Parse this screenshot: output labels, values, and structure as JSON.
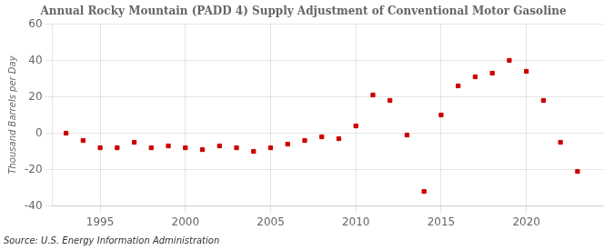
{
  "chart_data": {
    "type": "scatter",
    "title": "Annual Rocky Mountain (PADD 4) Supply Adjustment of Conventional Motor Gasoline",
    "ylabel": "Thousand Barrels per Day",
    "annotations": [
      "Source: U.S. Energy Information Administration"
    ],
    "x": [
      1993,
      1994,
      1995,
      1996,
      1997,
      1998,
      1999,
      2000,
      2001,
      2002,
      2003,
      2004,
      2005,
      2006,
      2007,
      2008,
      2009,
      2010,
      2011,
      2012,
      2013,
      2014,
      2015,
      2016,
      2017,
      2018,
      2019,
      2020,
      2021,
      2022,
      2023
    ],
    "values": [
      0.0,
      -4.0,
      -8.0,
      -8.0,
      -5.0,
      -8.0,
      -7.0,
      -8.0,
      -9.0,
      -7.0,
      -8.0,
      -10.0,
      -8.0,
      -6.0,
      -4.0,
      -2.0,
      -3.0,
      4.0,
      21.0,
      18.0,
      -1.0,
      -32.0,
      10.0,
      26.0,
      31.0,
      33.0,
      40.0,
      34.0,
      18.0,
      -5.0,
      -21.0
    ],
    "color": "#cc0000",
    "marker": "square",
    "xlim": [
      1992.2,
      2024.5
    ],
    "xticks": [
      1995,
      2000,
      2005,
      2010,
      2015,
      2020
    ],
    "ylim": [
      -40,
      60
    ],
    "yticks": [
      -40,
      -20,
      0,
      20,
      40,
      60
    ],
    "grid": true
  }
}
